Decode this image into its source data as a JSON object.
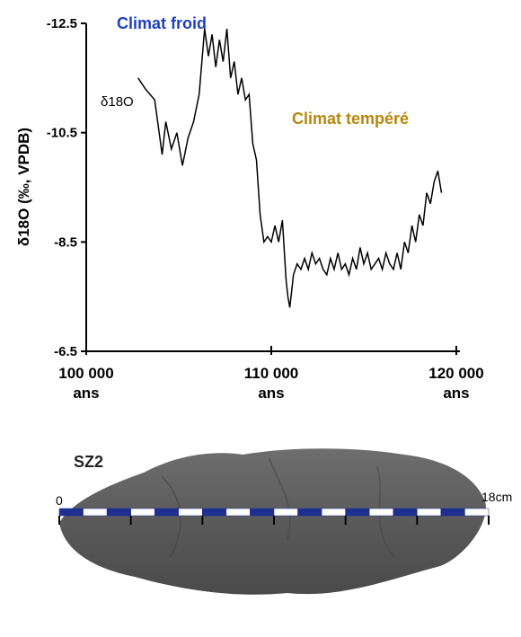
{
  "chart_data": {
    "type": "line",
    "title": "",
    "ylabel": "δ18O (‰, VPDB)",
    "xlabel": "",
    "ylim": [
      -6.5,
      -12.5
    ],
    "y_axis_inverted": true,
    "xlim": [
      100000,
      120000
    ],
    "y_ticks": [
      "-12.5",
      "-10.5",
      "-8.5",
      "-6.5"
    ],
    "x_ticks": [
      {
        "value": 100000,
        "line1": "100 000",
        "line2": "ans"
      },
      {
        "value": 110000,
        "line1": "110 000",
        "line2": "ans"
      },
      {
        "value": 120000,
        "line1": "120 000",
        "line2": "ans"
      }
    ],
    "series_label": "δ18O",
    "annotations": [
      {
        "text": "Climat froid",
        "color": "#1f3fbf"
      },
      {
        "text": "Climat tempéré",
        "color": "#b8860b"
      }
    ],
    "series": [
      {
        "x": [
          102800,
          103200,
          103700,
          104100,
          104300,
          104600,
          104900,
          105200,
          105500,
          105800,
          106100,
          106400,
          106600,
          106800,
          107000,
          107200,
          107400,
          107600,
          107800,
          108000,
          108200,
          108400,
          108600,
          108800,
          109000,
          109200,
          109400,
          109600,
          109800,
          110000,
          110200,
          110400,
          110600,
          110800,
          110900,
          111000,
          111100,
          111200,
          111400,
          111600,
          111800,
          112000,
          112200,
          112400,
          112600,
          112800,
          113000,
          113200,
          113400,
          113600,
          113800,
          114000,
          114200,
          114400,
          114600,
          114800,
          115000,
          115200,
          115400,
          115600,
          115800,
          116000,
          116200,
          116400,
          116600,
          116800,
          117000,
          117200,
          117400,
          117600,
          117800,
          118000,
          118200,
          118400,
          118600,
          118800,
          119000,
          119200
        ],
        "y": [
          -11.5,
          -11.3,
          -11.1,
          -10.1,
          -10.7,
          -10.2,
          -10.5,
          -9.9,
          -10.4,
          -10.7,
          -11.2,
          -12.4,
          -11.9,
          -12.3,
          -11.7,
          -12.2,
          -11.8,
          -12.4,
          -11.5,
          -11.8,
          -11.2,
          -11.5,
          -11.1,
          -11.2,
          -10.3,
          -10.0,
          -9.0,
          -8.5,
          -8.6,
          -8.5,
          -8.8,
          -8.5,
          -8.9,
          -7.8,
          -7.5,
          -7.3,
          -7.6,
          -7.9,
          -8.1,
          -8.0,
          -8.2,
          -8.0,
          -8.3,
          -8.1,
          -8.2,
          -8.0,
          -7.9,
          -8.2,
          -8.0,
          -8.3,
          -8.0,
          -8.1,
          -7.9,
          -8.2,
          -8.0,
          -8.4,
          -8.1,
          -8.3,
          -8.0,
          -8.1,
          -8.2,
          -8.0,
          -8.3,
          -8.1,
          -8.0,
          -8.3,
          -8.0,
          -8.5,
          -8.3,
          -8.8,
          -8.5,
          -9.0,
          -8.8,
          -9.4,
          -9.2,
          -9.6,
          -9.8,
          -9.4
        ]
      }
    ]
  },
  "sample": {
    "label": "SZ2",
    "scale_start": "0",
    "scale_end": "18cm"
  }
}
